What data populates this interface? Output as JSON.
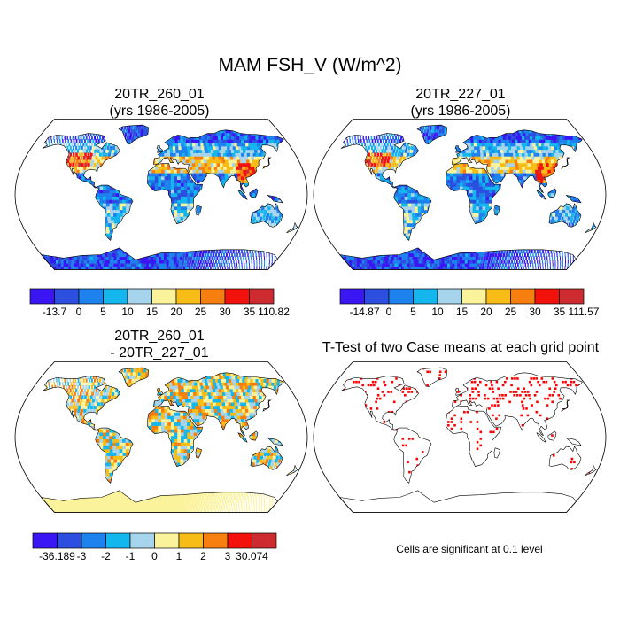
{
  "chart_data": {
    "title": "MAM FSH_V (W/m^2)",
    "type": "heatmap",
    "panels": [
      {
        "id": "case1",
        "title_line1": "20TR_260_01",
        "title_line2": "(yrs 1986-2005)",
        "colorbar": {
          "labels": [
            "-13.7",
            "0",
            "5",
            "10",
            "15",
            "20",
            "25",
            "30",
            "35",
            "110.82"
          ],
          "colors": [
            "#3a16f4",
            "#2c4fe0",
            "#1e82ee",
            "#14b6ee",
            "#a5d4ec",
            "#fbf39c",
            "#f7bd16",
            "#f77f0f",
            "#f3120b",
            "#cd2b2f"
          ]
        }
      },
      {
        "id": "case2",
        "title_line1": "20TR_227_01",
        "title_line2": "(yrs 1986-2005)",
        "colorbar": {
          "labels": [
            "-14.87",
            "0",
            "5",
            "10",
            "15",
            "20",
            "25",
            "30",
            "35",
            "111.57"
          ],
          "colors": [
            "#3a16f4",
            "#2c4fe0",
            "#1e82ee",
            "#14b6ee",
            "#a5d4ec",
            "#fbf39c",
            "#f7bd16",
            "#f77f0f",
            "#f3120b",
            "#cd2b2f"
          ]
        }
      },
      {
        "id": "diff",
        "title_line1": "20TR_260_01",
        "title_line2": "- 20TR_227_01",
        "colorbar": {
          "labels": [
            "-36.189",
            "-3",
            "-2",
            "-1",
            "0",
            "1",
            "2",
            "3",
            "30.074"
          ],
          "colors": [
            "#3a16f4",
            "#2c4fe0",
            "#1e82ee",
            "#14b6ee",
            "#a5d4ec",
            "#fbf39c",
            "#f7bd16",
            "#f77f0f",
            "#f3120b",
            "#cd2b2f"
          ]
        }
      },
      {
        "id": "ttest",
        "title_line1": "T-Test of two Case means at each grid point",
        "title_line2": "",
        "note": "Cells are significant at 0.1 level",
        "significance_color": "#ff0000"
      }
    ]
  }
}
